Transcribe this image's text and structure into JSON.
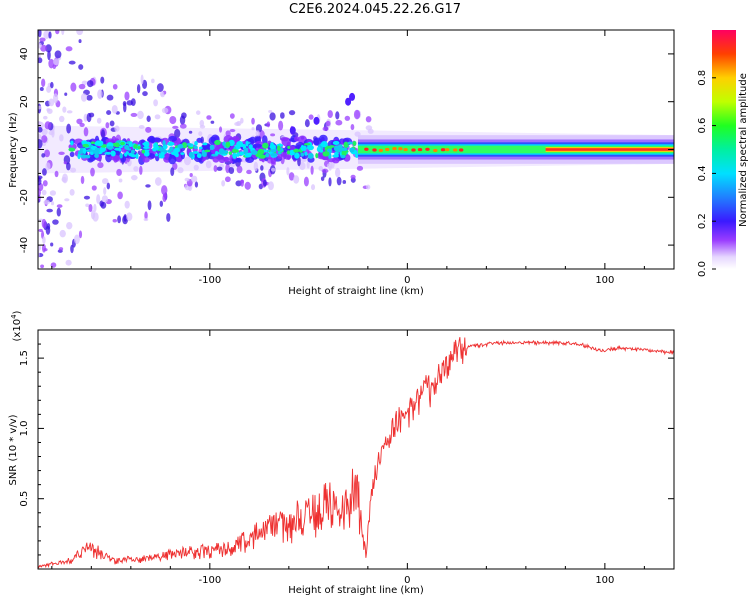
{
  "title": "C2E6.2024.045.22.26.G17",
  "chart_data": [
    {
      "type": "heatmap",
      "xlabel": "Height of straight line (km)",
      "ylabel": "Frequency (Hz)",
      "xlim": [
        -187,
        135
      ],
      "ylim": [
        -50,
        50
      ],
      "xticks": [
        -100,
        0,
        100
      ],
      "yticks": [
        -40,
        -20,
        0,
        20,
        40
      ],
      "colorbar": {
        "label": "Normalized spectral amplitude",
        "range": [
          0,
          1
        ],
        "ticks": [
          0.0,
          0.2,
          0.4,
          0.6,
          0.8
        ]
      },
      "dominant_frequency_hz": 0
    },
    {
      "type": "line",
      "xlabel": "Height of straight line (km)",
      "ylabel": "SNR (10 * v/v)",
      "y_multiplier": "(x10",
      "y_multiplier_exp": "4",
      "xlim": [
        -187,
        135
      ],
      "ylim": [
        0,
        1.7
      ],
      "xticks": [
        -100,
        0,
        100
      ],
      "yticks": [
        0.5,
        1.0,
        1.5
      ],
      "color": "#ee3030",
      "series": [
        {
          "x": [
            -187,
            -170,
            -162,
            -150,
            -130,
            -110,
            -90,
            -80,
            -70,
            -60,
            -50,
            -40,
            -30,
            -25,
            -21,
            -18,
            -15,
            -10,
            -5,
            0,
            5,
            10,
            12,
            15,
            20,
            25,
            30,
            40,
            50,
            60,
            70,
            80,
            90,
            95,
            100,
            105,
            110,
            120,
            135
          ],
          "values": [
            0.02,
            0.06,
            0.17,
            0.06,
            0.08,
            0.12,
            0.15,
            0.22,
            0.3,
            0.32,
            0.4,
            0.45,
            0.5,
            0.55,
            0.1,
            0.55,
            0.75,
            0.95,
            1.05,
            1.1,
            1.2,
            1.3,
            1.25,
            1.35,
            1.45,
            1.55,
            1.58,
            1.6,
            1.61,
            1.61,
            1.61,
            1.61,
            1.59,
            1.56,
            1.55,
            1.57,
            1.57,
            1.56,
            1.54
          ]
        }
      ]
    }
  ]
}
